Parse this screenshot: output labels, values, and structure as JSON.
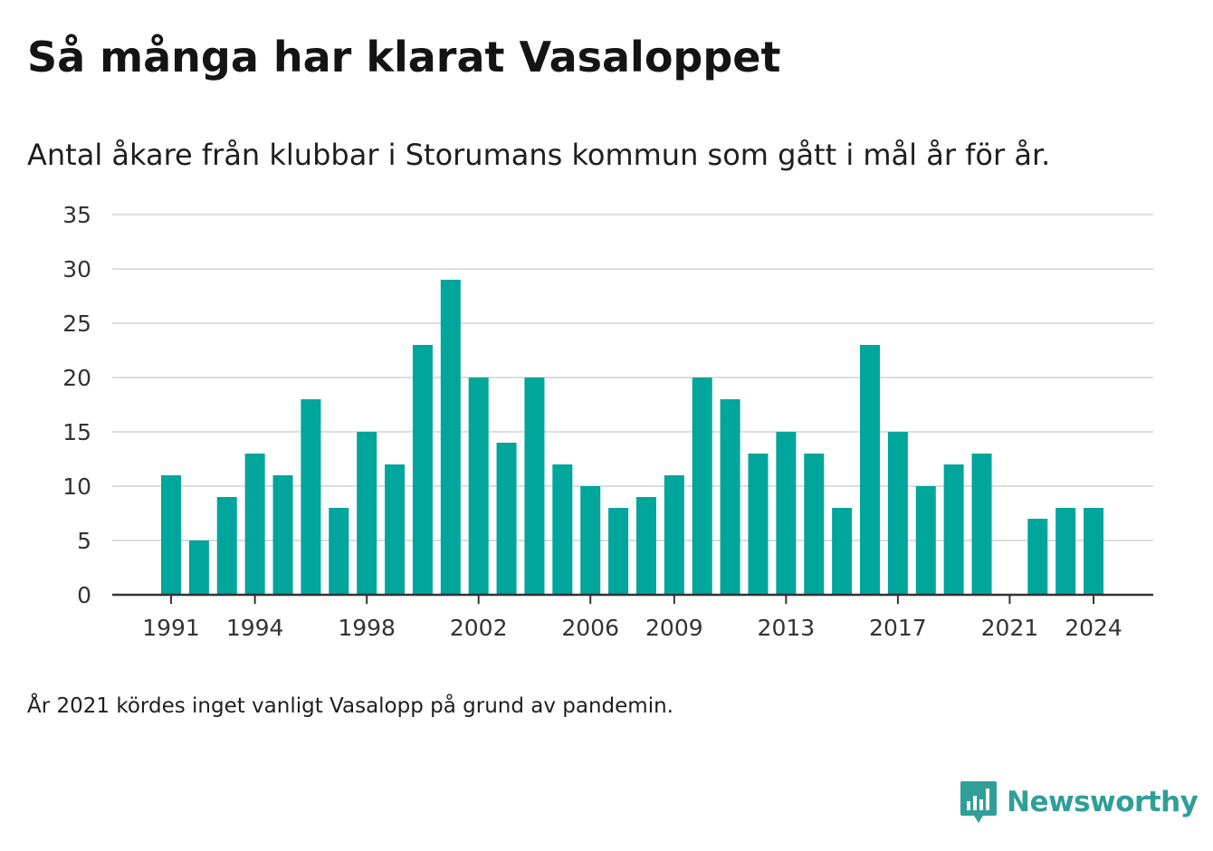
{
  "title": "Så många har klarat Vasaloppet",
  "subtitle": "Antal åkare från klubbar i Storumans kommun som gått i mål år för år.",
  "note": "År 2021 kördes inget vanligt Vasalopp på grund av pandemin.",
  "brand": {
    "name": "Newsworthy",
    "icon": "newsworthy-logo-icon",
    "color": "#2f9f98"
  },
  "chart_data": {
    "type": "bar",
    "color": "#00a59b",
    "grid": true,
    "ylim": [
      0,
      35
    ],
    "yticks": [
      0,
      5,
      10,
      15,
      20,
      25,
      30,
      35
    ],
    "xticks": [
      1991,
      1994,
      1998,
      2002,
      2006,
      2009,
      2013,
      2017,
      2021,
      2024
    ],
    "categories": [
      1991,
      1992,
      1993,
      1994,
      1995,
      1996,
      1997,
      1998,
      1999,
      2000,
      2001,
      2002,
      2003,
      2004,
      2005,
      2006,
      2007,
      2008,
      2009,
      2010,
      2011,
      2012,
      2013,
      2014,
      2015,
      2016,
      2017,
      2018,
      2019,
      2020,
      2021,
      2022,
      2023,
      2024
    ],
    "values": [
      11,
      5,
      9,
      13,
      11,
      18,
      8,
      15,
      12,
      23,
      29,
      20,
      14,
      20,
      12,
      10,
      8,
      9,
      11,
      20,
      18,
      13,
      15,
      13,
      8,
      23,
      15,
      10,
      12,
      13,
      null,
      7,
      8,
      8
    ]
  }
}
